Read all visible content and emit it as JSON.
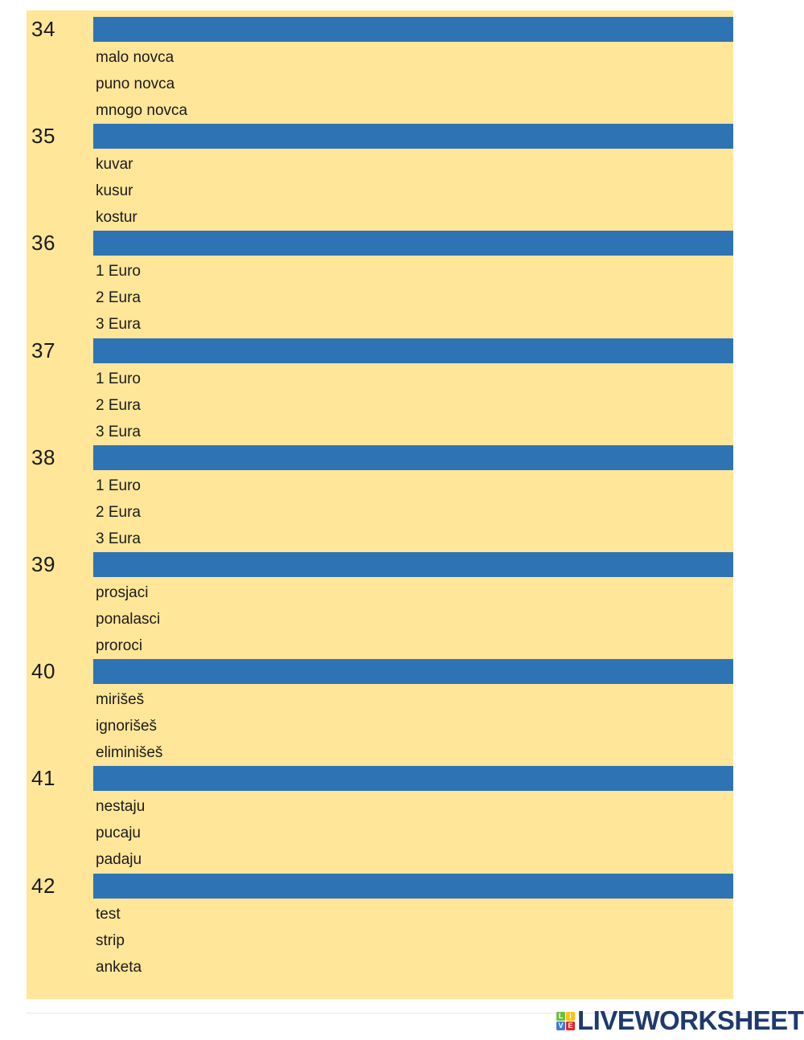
{
  "worksheet": {
    "panel_color": "#FFE699",
    "bar_color": "#2E74B5",
    "text_color": "#1b1b1b",
    "questions": [
      {
        "number": "34",
        "options": [
          "malo novca",
          "puno novca",
          "mnogo novca"
        ]
      },
      {
        "number": "35",
        "options": [
          "kuvar",
          "kusur",
          "kostur"
        ]
      },
      {
        "number": "36",
        "options": [
          "1 Euro",
          "2 Eura",
          "3 Eura"
        ]
      },
      {
        "number": "37",
        "options": [
          "1 Euro",
          "2 Eura",
          "3 Eura"
        ]
      },
      {
        "number": "38",
        "options": [
          "1 Euro",
          "2 Eura",
          "3 Eura"
        ]
      },
      {
        "number": "39",
        "options": [
          "prosjaci",
          "ponalasci",
          "proroci"
        ]
      },
      {
        "number": "40",
        "options": [
          "mirišeš",
          "ignorišeš",
          "eliminišeš"
        ]
      },
      {
        "number": "41",
        "options": [
          "nestaju",
          "pucaju",
          "padaju"
        ]
      },
      {
        "number": "42",
        "options": [
          "test",
          "strip",
          "anketa"
        ]
      }
    ]
  },
  "footer": {
    "logo_text": "LIVEWORKSHEETS",
    "logo_text_color": "#1E3A6D",
    "icon_tiles": [
      {
        "letter": "L",
        "color": "#6EBE45"
      },
      {
        "letter": "I",
        "color": "#FFC10E"
      },
      {
        "letter": "V",
        "color": "#3D7CD9"
      },
      {
        "letter": "E",
        "color": "#E5242B"
      }
    ]
  }
}
